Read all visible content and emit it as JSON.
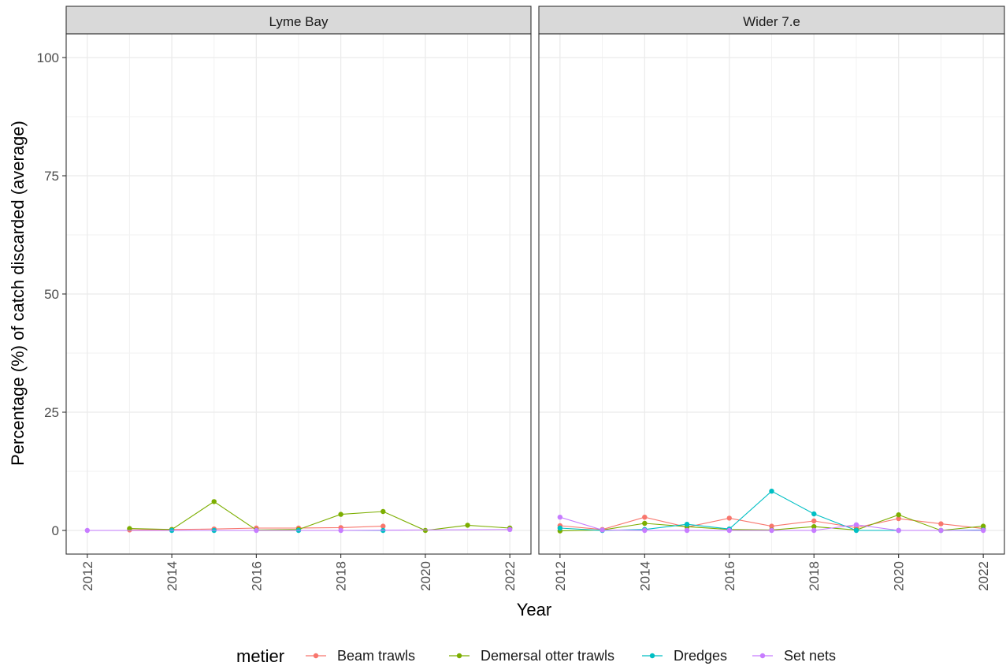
{
  "chart_data": {
    "type": "line",
    "facet_by": "area",
    "facets": [
      "Lyme Bay",
      "Wider 7.e"
    ],
    "xlabel": "Year",
    "ylabel": "Percentage (%) of catch discarded (average)",
    "x_ticks": [
      2012,
      2014,
      2016,
      2018,
      2020,
      2022
    ],
    "y_ticks": [
      0,
      25,
      50,
      75,
      100
    ],
    "xlim": [
      2011.5,
      2022.5
    ],
    "ylim": [
      -5,
      105
    ],
    "grid": true,
    "legend": {
      "title": "metier",
      "position": "bottom",
      "entries": [
        {
          "name": "Beam trawls",
          "color": "#F8766D"
        },
        {
          "name": "Demersal otter trawls",
          "color": "#7CAE00"
        },
        {
          "name": "Dredges",
          "color": "#00BFC4"
        },
        {
          "name": "Set nets",
          "color": "#C77CFF"
        }
      ]
    },
    "panels": [
      {
        "facet": "Lyme Bay",
        "series": [
          {
            "name": "Beam trawls",
            "x": [
              2013,
              2014,
              2015,
              2016,
              2017,
              2018,
              2019
            ],
            "values": [
              0.1,
              0.2,
              0.3,
              0.5,
              0.5,
              0.6,
              0.9
            ]
          },
          {
            "name": "Demersal otter trawls",
            "x": [
              2013,
              2014,
              2015,
              2016,
              2017,
              2018,
              2019,
              2020,
              2021,
              2022
            ],
            "values": [
              0.4,
              0.2,
              6.1,
              0.1,
              0.2,
              3.4,
              4.0,
              0.0,
              1.1,
              0.5
            ]
          },
          {
            "name": "Dredges",
            "x": [
              2014,
              2015,
              2017,
              2019
            ],
            "values": [
              0.0,
              0.0,
              0.0,
              0.0
            ]
          },
          {
            "name": "Set nets",
            "x": [
              2012,
              2016,
              2018,
              2022
            ],
            "values": [
              0.0,
              0.0,
              0.0,
              0.2
            ]
          }
        ]
      },
      {
        "facet": "Wider 7.e",
        "series": [
          {
            "name": "Beam trawls",
            "x": [
              2012,
              2013,
              2014,
              2015,
              2016,
              2017,
              2018,
              2019,
              2020,
              2021,
              2022
            ],
            "values": [
              1.0,
              0.2,
              2.8,
              0.7,
              2.6,
              0.9,
              2.0,
              0.6,
              2.5,
              1.4,
              0.4
            ]
          },
          {
            "name": "Demersal otter trawls",
            "x": [
              2012,
              2013,
              2014,
              2015,
              2016,
              2017,
              2018,
              2019,
              2020,
              2021,
              2022
            ],
            "values": [
              -0.1,
              0.1,
              1.5,
              0.8,
              0.2,
              0.1,
              0.8,
              0.1,
              3.3,
              0.0,
              0.9
            ]
          },
          {
            "name": "Dredges",
            "x": [
              2012,
              2013,
              2014,
              2015,
              2016,
              2017,
              2018,
              2019,
              2020,
              2021,
              2022
            ],
            "values": [
              0.5,
              0.0,
              0.2,
              1.3,
              0.3,
              8.3,
              3.5,
              0.0,
              0.0,
              0.0,
              0.1
            ]
          },
          {
            "name": "Set nets",
            "x": [
              2012,
              2013,
              2014,
              2015,
              2016,
              2017,
              2018,
              2019,
              2020,
              2021,
              2022
            ],
            "values": [
              2.8,
              0.1,
              0.0,
              0.0,
              0.0,
              0.0,
              0.0,
              1.2,
              0.0,
              0.0,
              0.0
            ]
          }
        ]
      }
    ]
  }
}
